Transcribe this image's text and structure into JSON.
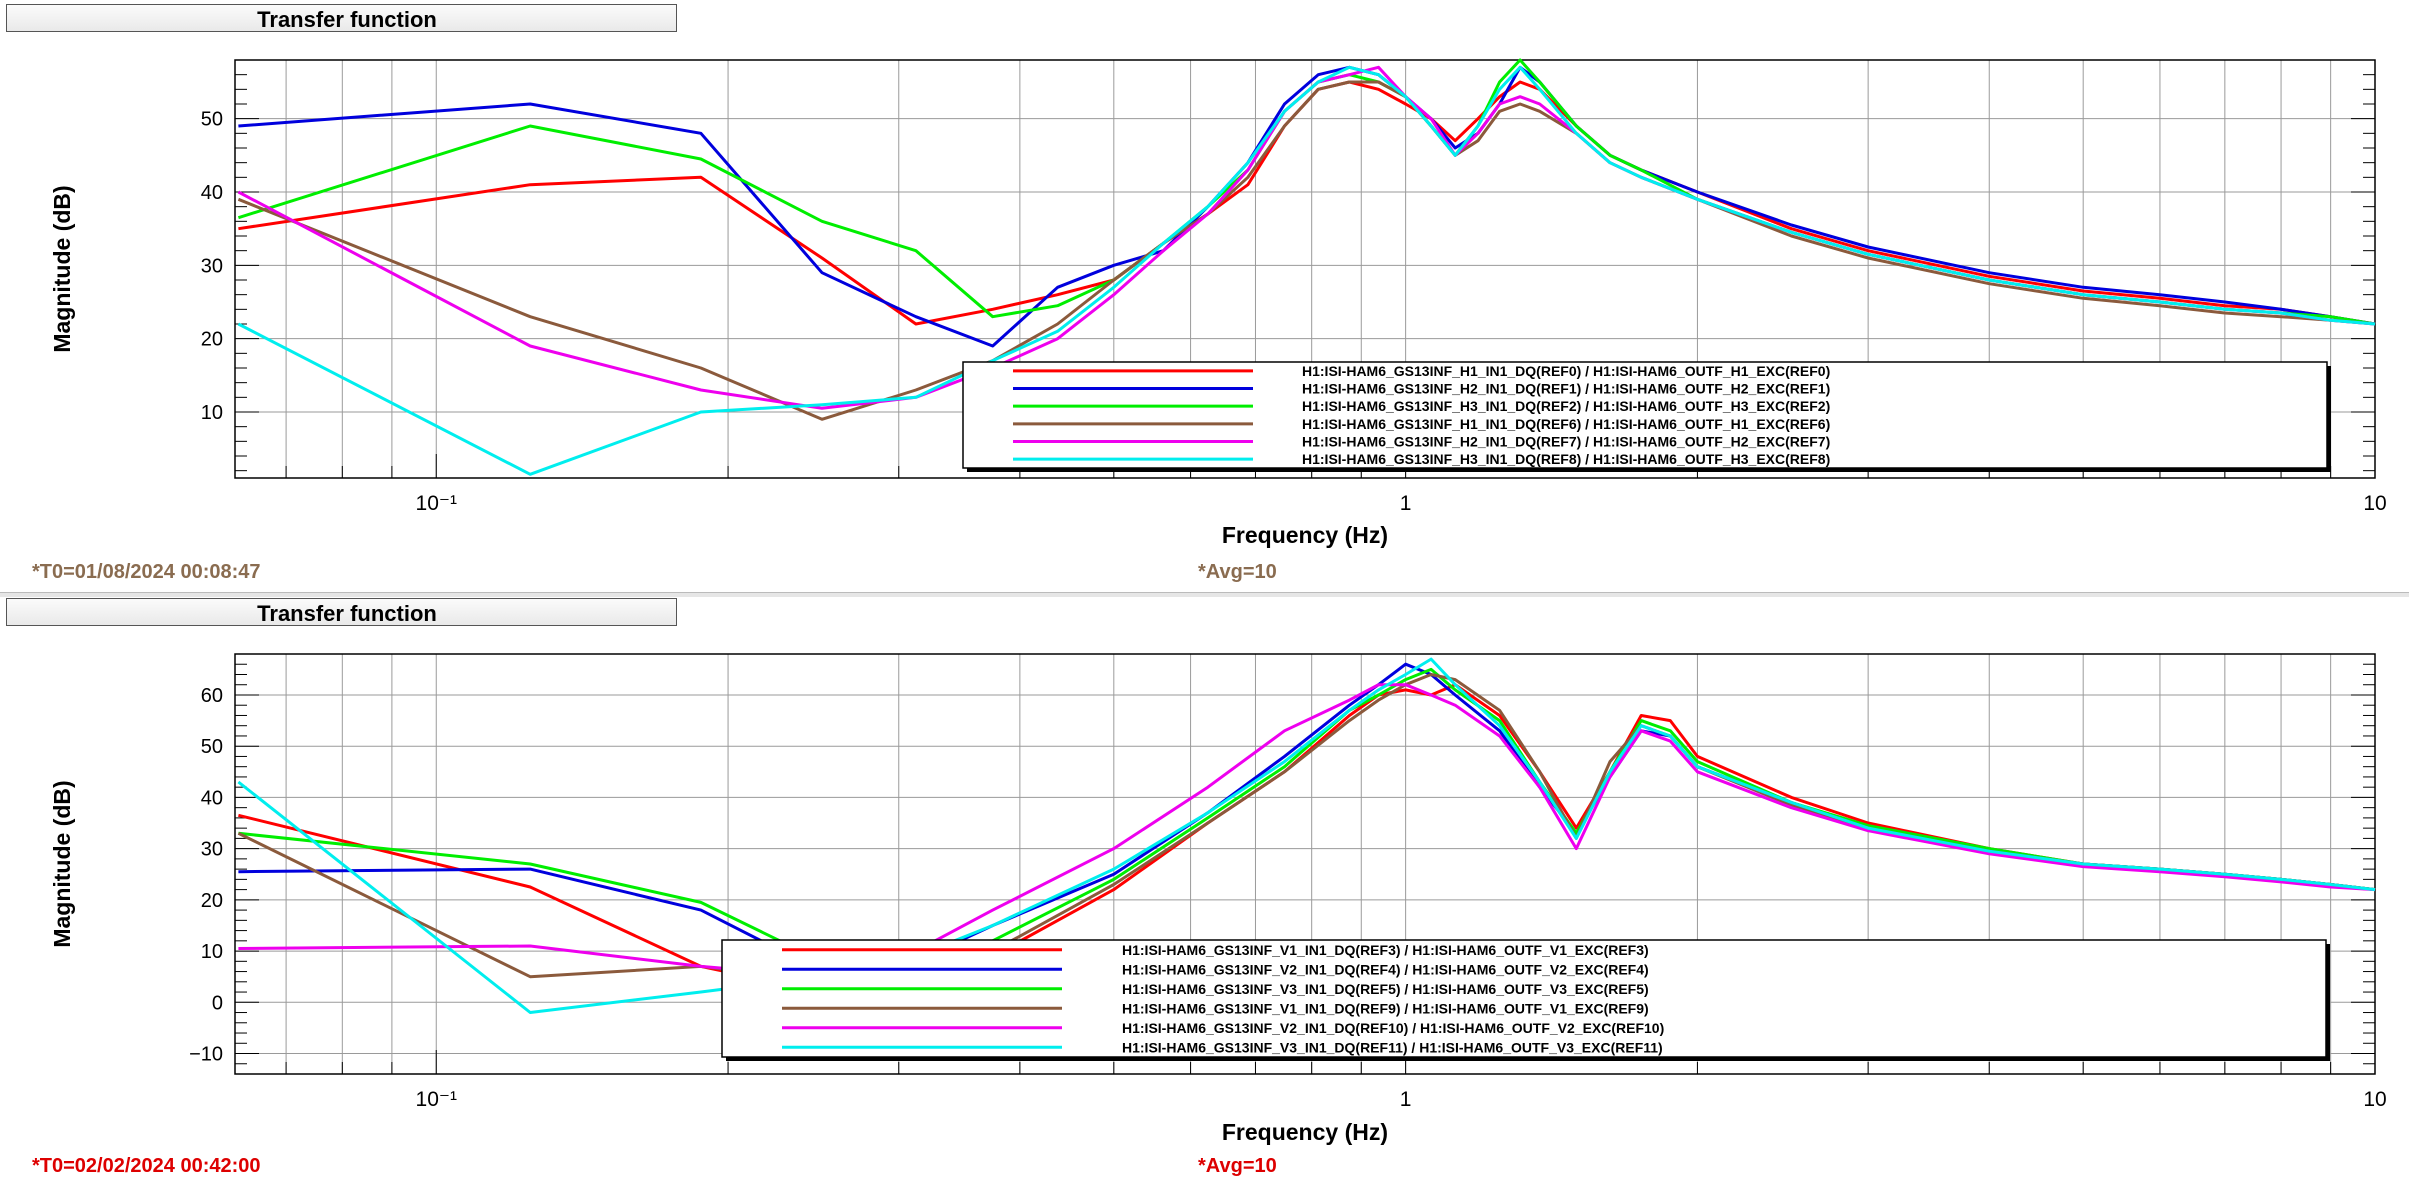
{
  "panels": [
    {
      "title": "Transfer function",
      "footer_t0": "*T0=01/08/2024 00:08:47",
      "footer_avg": "*Avg=10",
      "footer_color": "#8a6c50"
    },
    {
      "title": "Transfer function",
      "footer_t0": "*T0=02/02/2024 00:42:00",
      "footer_avg": "*Avg=10",
      "footer_color": "#dd0000"
    }
  ],
  "chart_data": [
    {
      "type": "line",
      "xlabel": "Frequency (Hz)",
      "ylabel": "Magnitude (dB)",
      "xscale": "log",
      "xlim": [
        0.062,
        10
      ],
      "ylim": [
        1,
        58
      ],
      "xticklabels": [
        "10⁻¹",
        "1",
        "10"
      ],
      "xtickvalues": [
        0.1,
        1,
        10
      ],
      "yticks": [
        10,
        20,
        30,
        40,
        50
      ],
      "grid": true,
      "legend_position": "bottom-right",
      "series": [
        {
          "name": "H1:ISI-HAM6_GS13INF_H1_IN1_DQ(REF0) / H1:ISI-HAM6_OUTF_H1_EXC(REF0)",
          "color": "#ff0000",
          "x": [
            0.0625,
            0.125,
            0.1875,
            0.25,
            0.3125,
            0.375,
            0.4375,
            0.5,
            0.5625,
            0.625,
            0.6875,
            0.75,
            0.8125,
            0.875,
            0.9375,
            1.0,
            1.0625,
            1.125,
            1.1875,
            1.25,
            1.3125,
            1.375,
            1.5,
            1.625,
            1.75,
            2.0,
            2.5,
            3.0,
            4.0,
            5.0,
            6.0,
            7.0,
            8.0,
            9.0,
            10.0
          ],
          "y": [
            35,
            41,
            42,
            31,
            22,
            24,
            26,
            28,
            33,
            37,
            41,
            49,
            54,
            55,
            54,
            52,
            50,
            47,
            50,
            53,
            55,
            54,
            49,
            45,
            43,
            40,
            35,
            32,
            28.5,
            26.5,
            25.5,
            24.5,
            24,
            23,
            22
          ]
        },
        {
          "name": "H1:ISI-HAM6_GS13INF_H2_IN1_DQ(REF1) / H1:ISI-HAM6_OUTF_H2_EXC(REF1)",
          "color": "#0000dd",
          "x": [
            0.0625,
            0.125,
            0.1875,
            0.25,
            0.3125,
            0.375,
            0.4375,
            0.5,
            0.5625,
            0.625,
            0.6875,
            0.75,
            0.8125,
            0.875,
            0.9375,
            1.0,
            1.0625,
            1.125,
            1.1875,
            1.25,
            1.3125,
            1.375,
            1.5,
            1.625,
            1.75,
            2.0,
            2.5,
            3.0,
            4.0,
            5.0,
            6.0,
            7.0,
            8.0,
            9.0,
            10.0
          ],
          "y": [
            49,
            52,
            48,
            29,
            23,
            19,
            27,
            30,
            32,
            38,
            44,
            52,
            56,
            57,
            56,
            53,
            50,
            46,
            48,
            52,
            57,
            55,
            49,
            45,
            43,
            40,
            35.5,
            32.5,
            29,
            27,
            26,
            25,
            24,
            23,
            22
          ]
        },
        {
          "name": "H1:ISI-HAM6_GS13INF_H3_IN1_DQ(REF2) / H1:ISI-HAM6_OUTF_H3_EXC(REF2)",
          "color": "#00ee00",
          "x": [
            0.0625,
            0.125,
            0.1875,
            0.25,
            0.3125,
            0.375,
            0.4375,
            0.5,
            0.5625,
            0.625,
            0.6875,
            0.75,
            0.8125,
            0.875,
            0.9375,
            1.0,
            1.0625,
            1.125,
            1.1875,
            1.25,
            1.3125,
            1.375,
            1.5,
            1.625,
            1.75,
            2.0,
            2.5,
            3.0,
            4.0,
            5.0,
            6.0,
            7.0,
            8.0,
            9.0,
            10.0
          ],
          "y": [
            36.5,
            49,
            44.5,
            36,
            32,
            23,
            24.5,
            28,
            33,
            38,
            43,
            51,
            55,
            56,
            55,
            53,
            49,
            45,
            49,
            55,
            58,
            55,
            49,
            45,
            43,
            39,
            34.5,
            31.5,
            28,
            26,
            25,
            24,
            23.5,
            23,
            22
          ]
        },
        {
          "name": "H1:ISI-HAM6_GS13INF_H1_IN1_DQ(REF6) / H1:ISI-HAM6_OUTF_H1_EXC(REF6)",
          "color": "#8b5a3c",
          "x": [
            0.0625,
            0.125,
            0.1875,
            0.25,
            0.3125,
            0.375,
            0.4375,
            0.5,
            0.5625,
            0.625,
            0.6875,
            0.75,
            0.8125,
            0.875,
            0.9375,
            1.0,
            1.0625,
            1.125,
            1.1875,
            1.25,
            1.3125,
            1.375,
            1.5,
            1.625,
            1.75,
            2.0,
            2.5,
            3.0,
            4.0,
            5.0,
            6.0,
            7.0,
            8.0,
            9.0,
            10.0
          ],
          "y": [
            39,
            23,
            16,
            9,
            13,
            17,
            22,
            28,
            33,
            37,
            42,
            49,
            54,
            55,
            55,
            53,
            49,
            45,
            47,
            51,
            52,
            51,
            48,
            44,
            42,
            39,
            34,
            31,
            27.5,
            25.5,
            24.5,
            23.5,
            23,
            22.5,
            22
          ]
        },
        {
          "name": "H1:ISI-HAM6_GS13INF_H2_IN1_DQ(REF7) / H1:ISI-HAM6_OUTF_H2_EXC(REF7)",
          "color": "#ee00ee",
          "x": [
            0.0625,
            0.125,
            0.1875,
            0.25,
            0.3125,
            0.375,
            0.4375,
            0.5,
            0.5625,
            0.625,
            0.6875,
            0.75,
            0.8125,
            0.875,
            0.9375,
            1.0,
            1.0625,
            1.125,
            1.1875,
            1.25,
            1.3125,
            1.375,
            1.5,
            1.625,
            1.75,
            2.0,
            2.5,
            3.0,
            4.0,
            5.0,
            6.0,
            7.0,
            8.0,
            9.0,
            10.0
          ],
          "y": [
            40,
            19,
            13,
            10.5,
            12,
            16,
            20,
            26,
            32,
            37,
            43,
            51,
            55,
            56,
            57,
            53,
            50,
            45,
            48,
            52,
            53,
            52,
            48,
            44,
            42,
            39,
            34.5,
            31.5,
            28,
            26,
            25,
            24,
            23.5,
            22.5,
            22
          ]
        },
        {
          "name": "H1:ISI-HAM6_GS13INF_H3_IN1_DQ(REF8) / H1:ISI-HAM6_OUTF_H3_EXC(REF8)",
          "color": "#00eeee",
          "x": [
            0.0625,
            0.125,
            0.1875,
            0.25,
            0.3125,
            0.375,
            0.4375,
            0.5,
            0.5625,
            0.625,
            0.6875,
            0.75,
            0.8125,
            0.875,
            0.9375,
            1.0,
            1.0625,
            1.125,
            1.1875,
            1.25,
            1.3125,
            1.375,
            1.5,
            1.625,
            1.75,
            2.0,
            2.5,
            3.0,
            4.0,
            5.0,
            6.0,
            7.0,
            8.0,
            9.0,
            10.0
          ],
          "y": [
            22,
            1.5,
            10,
            11,
            12,
            17,
            21,
            27,
            33,
            38,
            44,
            51,
            55,
            57,
            56,
            53,
            49,
            45,
            49,
            54,
            57,
            54,
            48,
            44,
            42,
            39,
            34.5,
            31.5,
            28,
            26,
            25,
            24,
            23.5,
            22.5,
            22
          ]
        }
      ]
    },
    {
      "type": "line",
      "xlabel": "Frequency (Hz)",
      "ylabel": "Magnitude (dB)",
      "xscale": "log",
      "xlim": [
        0.062,
        10
      ],
      "ylim": [
        -14,
        68
      ],
      "xticklabels": [
        "10⁻¹",
        "1",
        "10"
      ],
      "xtickvalues": [
        0.1,
        1,
        10
      ],
      "yticks": [
        -10,
        0,
        10,
        20,
        30,
        40,
        50,
        60
      ],
      "grid": true,
      "legend_position": "bottom-right",
      "series": [
        {
          "name": "H1:ISI-HAM6_GS13INF_V1_IN1_DQ(REF3) / H1:ISI-HAM6_OUTF_V1_EXC(REF3)",
          "color": "#ff0000",
          "x": [
            0.0625,
            0.125,
            0.1875,
            0.25,
            0.3125,
            0.375,
            0.5,
            0.625,
            0.75,
            0.875,
            0.9375,
            1.0,
            1.0625,
            1.125,
            1.25,
            1.375,
            1.5,
            1.625,
            1.75,
            1.875,
            2.0,
            2.5,
            3.0,
            4.0,
            5.0,
            6.0,
            7.0,
            8.0,
            9.0,
            10.0
          ],
          "y": [
            36.5,
            22.5,
            7,
            2,
            5,
            9,
            22,
            35,
            45,
            56,
            60,
            61,
            60,
            62,
            56,
            45,
            34,
            45,
            56,
            55,
            48,
            40,
            35,
            30,
            27,
            26,
            25,
            24,
            23,
            22
          ]
        },
        {
          "name": "H1:ISI-HAM6_GS13INF_V2_IN1_DQ(REF4) / H1:ISI-HAM6_OUTF_V2_EXC(REF4)",
          "color": "#0000dd",
          "x": [
            0.0625,
            0.125,
            0.1875,
            0.25,
            0.3125,
            0.375,
            0.5,
            0.625,
            0.75,
            0.875,
            0.9375,
            1.0,
            1.0625,
            1.125,
            1.25,
            1.375,
            1.5,
            1.625,
            1.75,
            1.875,
            2.0,
            2.5,
            3.0,
            4.0,
            5.0,
            6.0,
            7.0,
            8.0,
            9.0,
            10.0
          ],
          "y": [
            25.5,
            26,
            18,
            6,
            8,
            15,
            25,
            37,
            48,
            58,
            62,
            66,
            64,
            60,
            53,
            42,
            33,
            44,
            53,
            52,
            46,
            39,
            34,
            29.5,
            27,
            26,
            25,
            24,
            23,
            22
          ]
        },
        {
          "name": "H1:ISI-HAM6_GS13INF_V3_IN1_DQ(REF5) / H1:ISI-HAM6_OUTF_V3_EXC(REF5)",
          "color": "#00ee00",
          "x": [
            0.0625,
            0.125,
            0.1875,
            0.25,
            0.3125,
            0.375,
            0.5,
            0.625,
            0.75,
            0.875,
            0.9375,
            1.0,
            1.0625,
            1.125,
            1.25,
            1.375,
            1.5,
            1.625,
            1.75,
            1.875,
            2.0,
            2.5,
            3.0,
            4.0,
            5.0,
            6.0,
            7.0,
            8.0,
            9.0,
            10.0
          ],
          "y": [
            33,
            27,
            19.5,
            8,
            6,
            12,
            24,
            36,
            46,
            57,
            60,
            63,
            65,
            61,
            55,
            43,
            33,
            45,
            55,
            53,
            47,
            39,
            34.5,
            30,
            27,
            26,
            25,
            24,
            23,
            22
          ]
        },
        {
          "name": "H1:ISI-HAM6_GS13INF_V1_IN1_DQ(REF9) / H1:ISI-HAM6_OUTF_V1_EXC(REF9)",
          "color": "#8b5a3c",
          "x": [
            0.0625,
            0.125,
            0.1875,
            0.25,
            0.3125,
            0.375,
            0.5,
            0.625,
            0.75,
            0.875,
            0.9375,
            1.0,
            1.0625,
            1.125,
            1.25,
            1.375,
            1.5,
            1.625,
            1.75,
            1.875,
            2.0,
            2.5,
            3.0,
            4.0,
            5.0,
            6.0,
            7.0,
            8.0,
            9.0,
            10.0
          ],
          "y": [
            33,
            5,
            7,
            4,
            6,
            10,
            23,
            35,
            45,
            55,
            59,
            62,
            64,
            63,
            57,
            45,
            32,
            47,
            54,
            52,
            46,
            38.5,
            34,
            29.5,
            27,
            26,
            25,
            24,
            23,
            22
          ]
        },
        {
          "name": "H1:ISI-HAM6_GS13INF_V2_IN1_DQ(REF10) / H1:ISI-HAM6_OUTF_V2_EXC(REF10)",
          "color": "#ee00ee",
          "x": [
            0.0625,
            0.125,
            0.1875,
            0.25,
            0.3125,
            0.375,
            0.5,
            0.625,
            0.75,
            0.875,
            0.9375,
            1.0,
            1.0625,
            1.125,
            1.25,
            1.375,
            1.5,
            1.625,
            1.75,
            1.875,
            2.0,
            2.5,
            3.0,
            4.0,
            5.0,
            6.0,
            7.0,
            8.0,
            9.0,
            10.0
          ],
          "y": [
            10.5,
            11,
            7,
            5,
            10,
            18,
            30,
            42,
            53,
            59,
            62,
            62,
            60,
            58,
            52,
            42,
            30,
            44,
            53,
            51,
            45,
            38,
            33.5,
            29,
            26.5,
            25.5,
            24.5,
            23.5,
            22.5,
            22
          ]
        },
        {
          "name": "H1:ISI-HAM6_GS13INF_V3_IN1_DQ(REF11) / H1:ISI-HAM6_OUTF_V3_EXC(REF11)",
          "color": "#00eeee",
          "x": [
            0.0625,
            0.125,
            0.1875,
            0.25,
            0.3125,
            0.375,
            0.5,
            0.625,
            0.75,
            0.875,
            0.9375,
            1.0,
            1.0625,
            1.125,
            1.25,
            1.375,
            1.5,
            1.625,
            1.75,
            1.875,
            2.0,
            2.5,
            3.0,
            4.0,
            5.0,
            6.0,
            7.0,
            8.0,
            9.0,
            10.0
          ],
          "y": [
            43,
            -2,
            2,
            5,
            9,
            15,
            26,
            37,
            47,
            57,
            61,
            64,
            67,
            62,
            54,
            43,
            32,
            45,
            54,
            52,
            46,
            39,
            34,
            29.5,
            27,
            26,
            25,
            24,
            23,
            22
          ]
        }
      ]
    }
  ]
}
